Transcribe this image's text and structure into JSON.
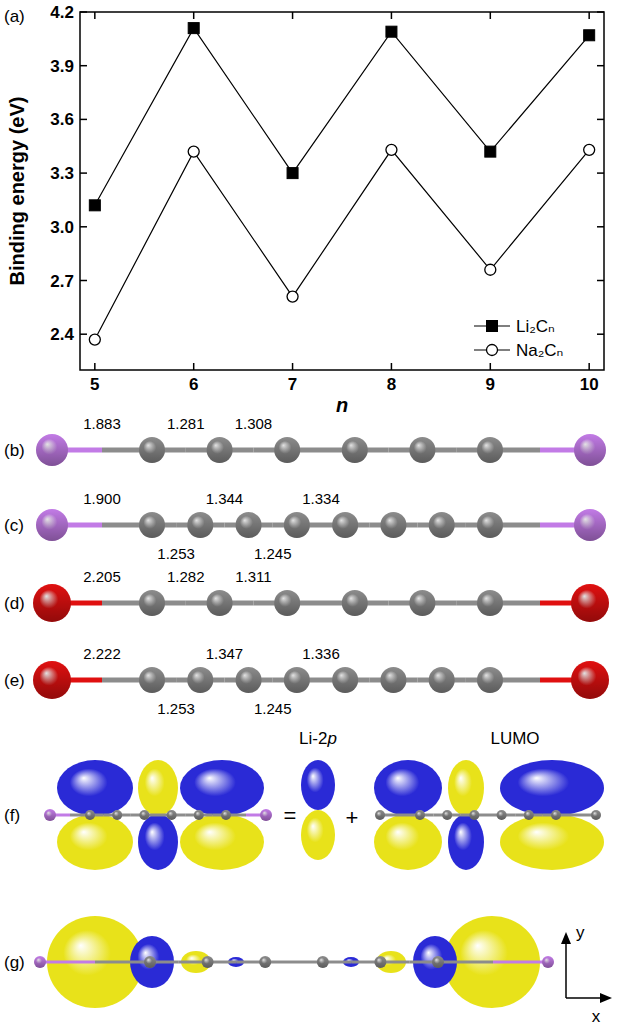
{
  "chart_data": {
    "type": "line",
    "annotations": [
      "(a)"
    ],
    "x_label": "n",
    "y_label": "Binding energy (eV)",
    "x": [
      5,
      6,
      7,
      8,
      9,
      10
    ],
    "series": [
      {
        "name": "Li₂Cₙ",
        "color": "#000000",
        "marker": "square",
        "values": [
          3.12,
          4.11,
          3.3,
          4.09,
          3.42,
          4.07
        ]
      },
      {
        "name": "Na₂Cₙ",
        "color": "#000000",
        "marker": "open-circle",
        "values": [
          2.37,
          3.42,
          2.61,
          3.43,
          2.76,
          3.43
        ]
      }
    ],
    "xlim": [
      4.85,
      10.15
    ],
    "xticks": [
      5,
      6,
      7,
      8,
      9,
      10
    ],
    "ylim": [
      2.2,
      4.2
    ],
    "yticks": [
      2.4,
      2.7,
      {
        "value": 3,
        "label": "3.0"
      },
      3.3,
      3.6,
      3.9,
      4.2
    ],
    "legend": "lower-right",
    "grid": false
  },
  "structures": [
    {
      "label": "(b)",
      "end_color": "#c27be6",
      "carbons": 6,
      "bonds": [
        {
          "index": 0,
          "text": "1.883",
          "side": "above"
        },
        {
          "index": 1,
          "text": "1.281",
          "side": "above"
        },
        {
          "index": 2,
          "text": "1.308",
          "side": "above"
        }
      ]
    },
    {
      "label": "(c)",
      "end_color": "#c27be6",
      "carbons": 8,
      "bonds": [
        {
          "index": 0,
          "text": "1.900",
          "side": "above"
        },
        {
          "index": 1,
          "text": "1.253",
          "side": "below"
        },
        {
          "index": 2,
          "text": "1.344",
          "side": "above"
        },
        {
          "index": 3,
          "text": "1.245",
          "side": "below"
        },
        {
          "index": 4,
          "text": "1.334",
          "side": "above"
        }
      ]
    },
    {
      "label": "(d)",
      "end_color": "#e01010",
      "carbons": 6,
      "bonds": [
        {
          "index": 0,
          "text": "2.205",
          "side": "above"
        },
        {
          "index": 1,
          "text": "1.282",
          "side": "above"
        },
        {
          "index": 2,
          "text": "1.311",
          "side": "above"
        }
      ]
    },
    {
      "label": "(e)",
      "end_color": "#e01010",
      "carbons": 8,
      "bonds": [
        {
          "index": 0,
          "text": "2.222",
          "side": "above"
        },
        {
          "index": 1,
          "text": "1.253",
          "side": "below"
        },
        {
          "index": 2,
          "text": "1.347",
          "side": "above"
        },
        {
          "index": 3,
          "text": "1.245",
          "side": "below"
        },
        {
          "index": 4,
          "text": "1.336",
          "side": "above"
        }
      ]
    }
  ],
  "orbitals": {
    "composite": {
      "label": "(f)",
      "equals": "=",
      "plus": "+",
      "terms": [
        "Li-2p",
        "LUMO"
      ]
    },
    "density": {
      "label": "(g)"
    },
    "axes": {
      "vertical": "y",
      "horizontal": "x"
    }
  }
}
